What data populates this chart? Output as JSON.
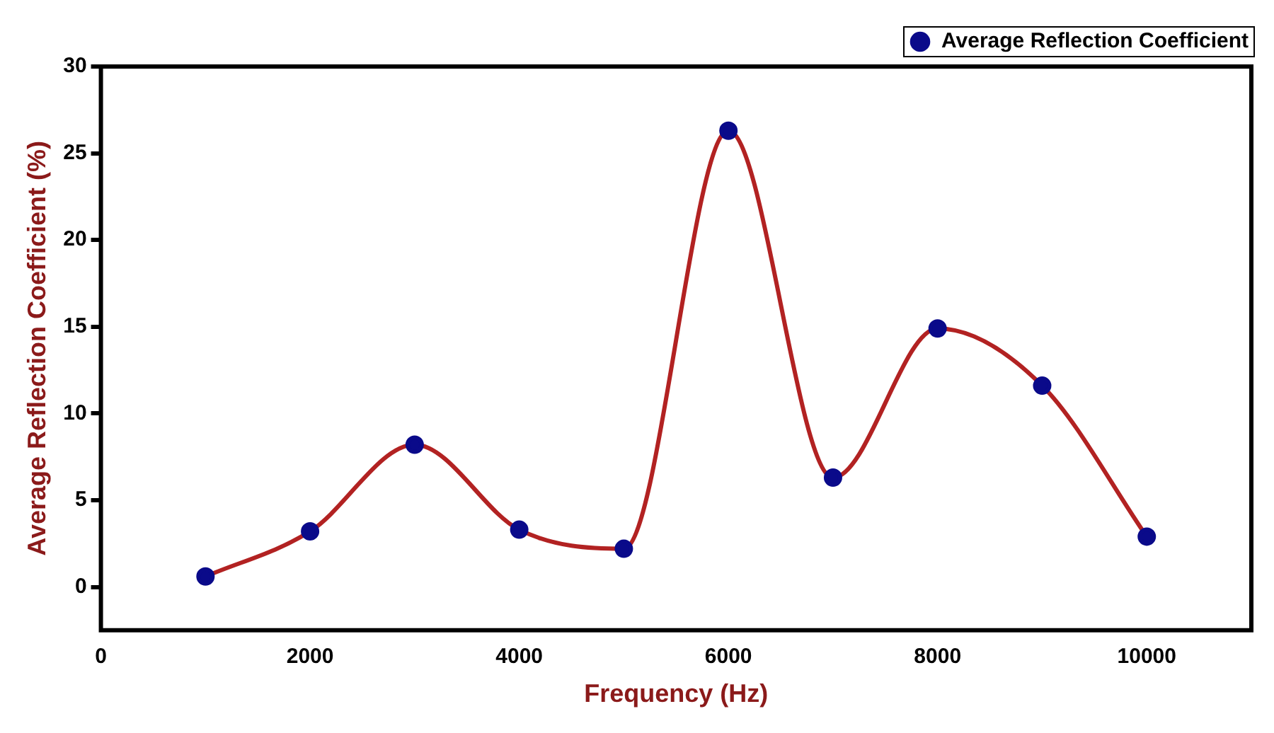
{
  "chart_data": {
    "type": "line",
    "xlabel": "Frequency (Hz)",
    "ylabel": "Average Reflection Coefficient (%)",
    "x": [
      1000,
      2000,
      3000,
      4000,
      5000,
      6000,
      7000,
      8000,
      9000,
      10000
    ],
    "series": [
      {
        "name": "Average Reflection Coefficient",
        "color": "#b22222",
        "values": [
          0.6,
          3.2,
          8.2,
          3.3,
          2.2,
          26.3,
          6.3,
          14.9,
          11.6,
          2.9
        ]
      }
    ],
    "xlim": [
      0,
      11000
    ],
    "xticks": [
      0,
      2000,
      4000,
      6000,
      8000,
      10000
    ],
    "ylim": [
      -2.5,
      30
    ],
    "yticks": [
      0,
      5,
      10,
      15,
      20,
      25,
      30
    ],
    "grid": false,
    "legend": "top right",
    "marker": "circle",
    "line_style": "solid"
  }
}
